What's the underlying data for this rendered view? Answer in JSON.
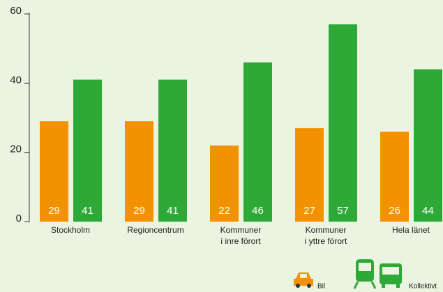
{
  "chart_data": {
    "type": "bar",
    "categories": [
      "Stockholm",
      "Regioncentrum",
      "Kommuner\ni inre förort",
      "Kommuner\ni yttre förort",
      "Hela länet"
    ],
    "series": [
      {
        "name": "Bil",
        "color": "#f39200",
        "values": [
          29,
          29,
          22,
          27,
          26
        ]
      },
      {
        "name": "Kollektivt",
        "color": "#2ea836",
        "values": [
          41,
          41,
          46,
          57,
          44
        ]
      }
    ],
    "ylim": [
      0,
      60
    ],
    "yticks": [
      0,
      20,
      40,
      60
    ]
  }
}
